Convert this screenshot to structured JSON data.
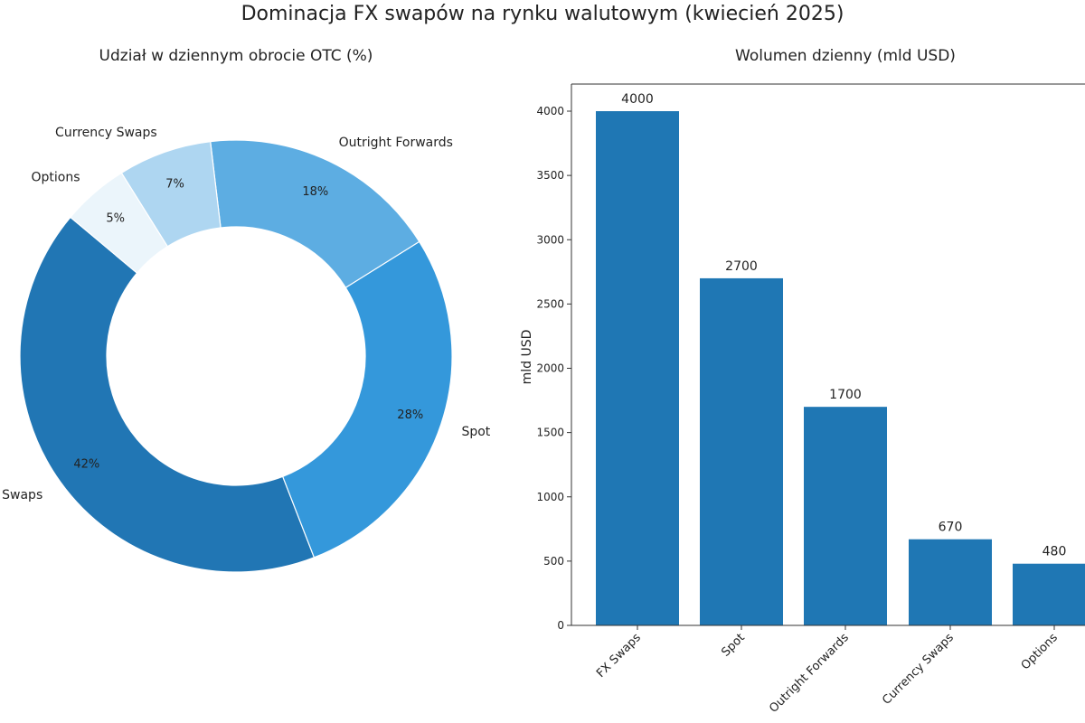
{
  "title": "Dominacja FX swapów na rynku walutowym (kwiecień 2025)",
  "chart_data": [
    {
      "type": "pie",
      "donut": true,
      "title": "Udział w dziennym obrocie OTC (%)",
      "categories": [
        "FX Swaps",
        "Spot",
        "Outright Forwards",
        "Currency Swaps",
        "Options"
      ],
      "values": [
        42,
        28,
        18,
        7,
        5
      ],
      "value_labels": [
        "42%",
        "28%",
        "18%",
        "7%",
        "5%"
      ],
      "colors": [
        "#2176b4",
        "#3498db",
        "#5dade2",
        "#aed6f1",
        "#ebf5fb"
      ]
    },
    {
      "type": "bar",
      "title": "Wolumen dzienny (mld USD)",
      "xlabel": "",
      "ylabel": "mld USD",
      "categories": [
        "FX Swaps",
        "Spot",
        "Outright Forwards",
        "Currency Swaps",
        "Options"
      ],
      "values": [
        4000,
        2700,
        1700,
        670,
        480
      ],
      "value_labels": [
        "4000",
        "2700",
        "1700",
        "670",
        "480"
      ],
      "yticks": [
        0,
        500,
        1000,
        1500,
        2000,
        2500,
        3000,
        3500,
        4000
      ],
      "ylim": [
        0,
        4200
      ],
      "color": "#1f77b4",
      "grid": false
    }
  ]
}
